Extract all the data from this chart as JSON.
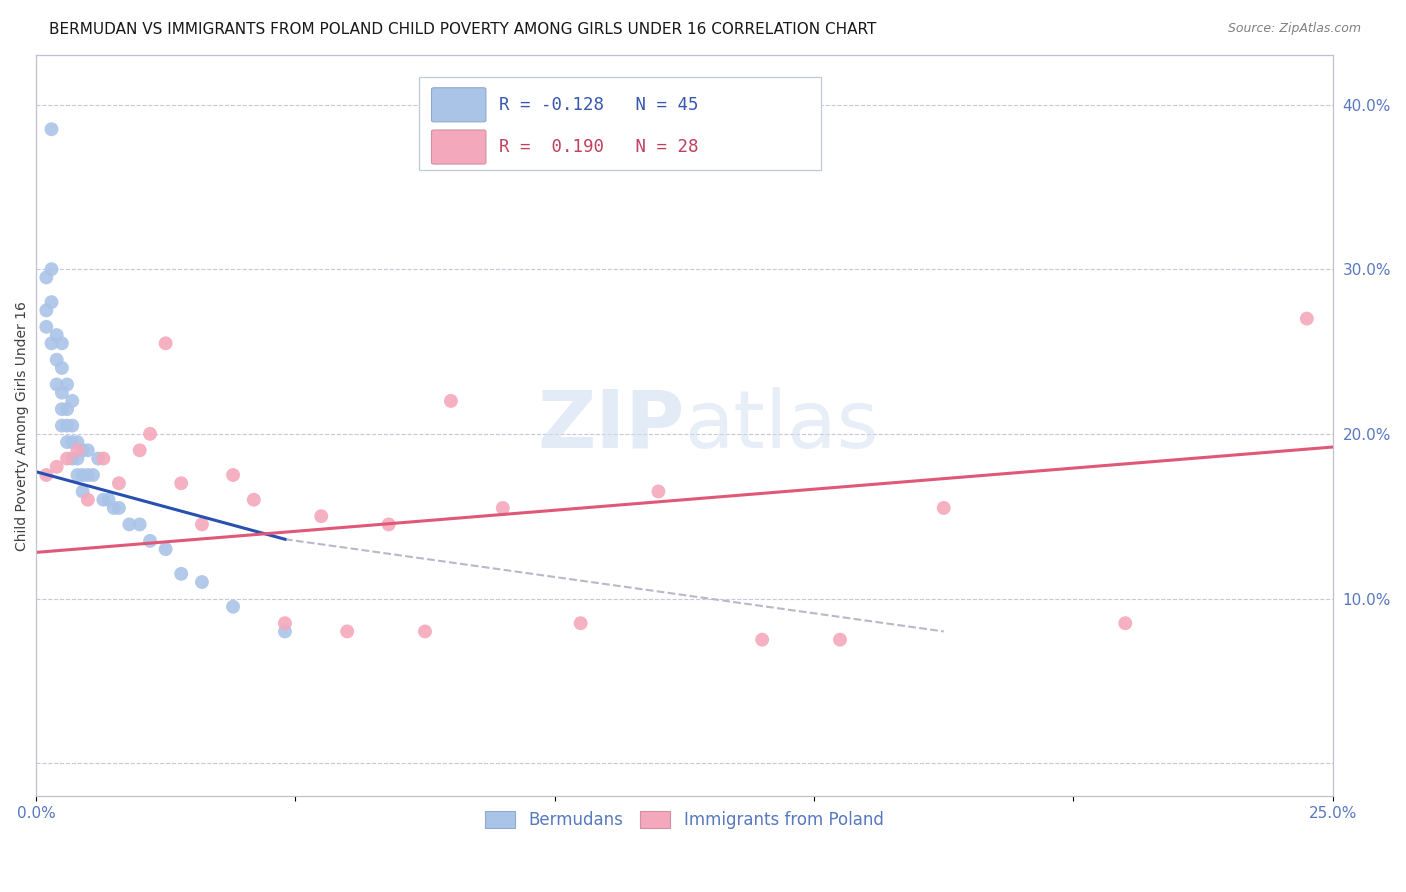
{
  "title": "BERMUDAN VS IMMIGRANTS FROM POLAND CHILD POVERTY AMONG GIRLS UNDER 16 CORRELATION CHART",
  "source": "Source: ZipAtlas.com",
  "ylabel": "Child Poverty Among Girls Under 16",
  "xlim": [
    0.0,
    0.25
  ],
  "ylim": [
    -0.02,
    0.43
  ],
  "xticks": [
    0.0,
    0.05,
    0.1,
    0.15,
    0.2,
    0.25
  ],
  "xticklabels": [
    "0.0%",
    "",
    "",
    "",
    "",
    "25.0%"
  ],
  "yticks_right": [
    0.0,
    0.1,
    0.2,
    0.3,
    0.4
  ],
  "ytick_right_labels": [
    "",
    "10.0%",
    "20.0%",
    "30.0%",
    "40.0%"
  ],
  "blue_R": -0.128,
  "blue_N": 45,
  "pink_R": 0.19,
  "pink_N": 28,
  "blue_label": "Bermudans",
  "pink_label": "Immigrants from Poland",
  "blue_color": "#aac4e8",
  "pink_color": "#f4a8bc",
  "blue_line_color": "#2850b0",
  "pink_line_color": "#e05878",
  "dashed_color": "#b8b8c8",
  "watermark_zip": "ZIP",
  "watermark_atlas": "atlas",
  "blue_x": [
    0.003,
    0.002,
    0.002,
    0.002,
    0.003,
    0.003,
    0.003,
    0.004,
    0.004,
    0.004,
    0.005,
    0.005,
    0.005,
    0.005,
    0.005,
    0.006,
    0.006,
    0.006,
    0.006,
    0.007,
    0.007,
    0.007,
    0.007,
    0.008,
    0.008,
    0.008,
    0.009,
    0.009,
    0.009,
    0.01,
    0.01,
    0.011,
    0.012,
    0.013,
    0.014,
    0.015,
    0.016,
    0.018,
    0.02,
    0.022,
    0.025,
    0.028,
    0.032,
    0.038,
    0.048
  ],
  "blue_y": [
    0.385,
    0.295,
    0.275,
    0.265,
    0.3,
    0.28,
    0.255,
    0.26,
    0.245,
    0.23,
    0.255,
    0.24,
    0.225,
    0.215,
    0.205,
    0.23,
    0.215,
    0.205,
    0.195,
    0.22,
    0.205,
    0.195,
    0.185,
    0.195,
    0.185,
    0.175,
    0.19,
    0.175,
    0.165,
    0.19,
    0.175,
    0.175,
    0.185,
    0.16,
    0.16,
    0.155,
    0.155,
    0.145,
    0.145,
    0.135,
    0.13,
    0.115,
    0.11,
    0.095,
    0.08
  ],
  "pink_x": [
    0.002,
    0.004,
    0.006,
    0.008,
    0.01,
    0.013,
    0.016,
    0.02,
    0.022,
    0.025,
    0.028,
    0.032,
    0.038,
    0.042,
    0.048,
    0.055,
    0.06,
    0.068,
    0.075,
    0.08,
    0.09,
    0.105,
    0.12,
    0.14,
    0.155,
    0.175,
    0.21,
    0.245
  ],
  "pink_y": [
    0.175,
    0.18,
    0.185,
    0.19,
    0.16,
    0.185,
    0.17,
    0.19,
    0.2,
    0.255,
    0.17,
    0.145,
    0.175,
    0.16,
    0.085,
    0.15,
    0.08,
    0.145,
    0.08,
    0.22,
    0.155,
    0.085,
    0.165,
    0.075,
    0.075,
    0.155,
    0.085,
    0.27
  ],
  "title_fontsize": 11,
  "axis_label_fontsize": 10,
  "tick_fontsize": 11,
  "marker_size": 100
}
